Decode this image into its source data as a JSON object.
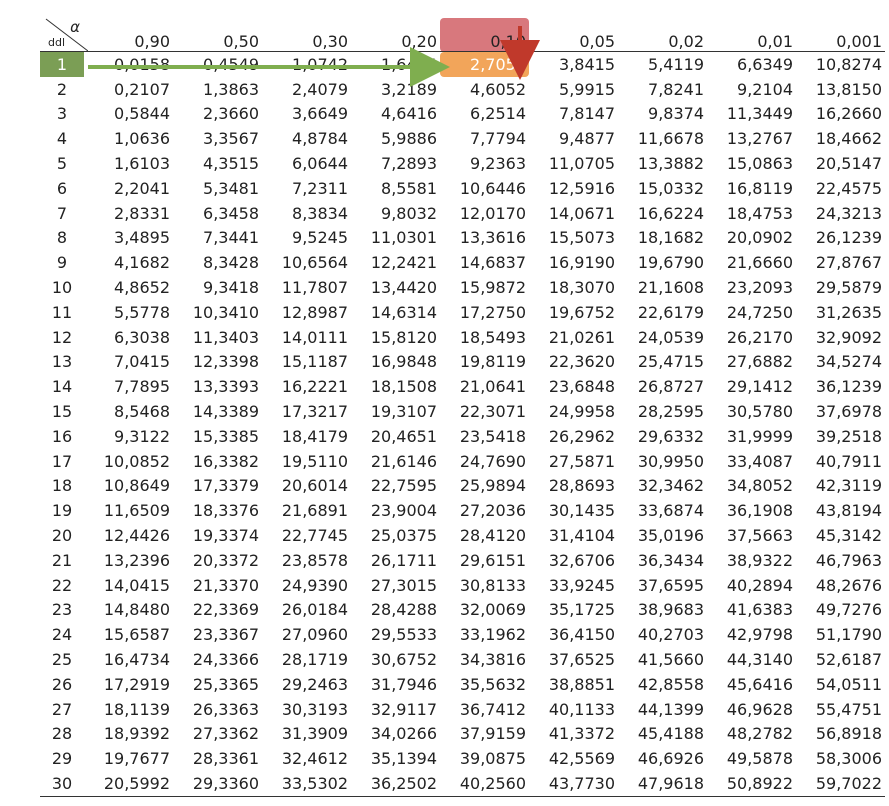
{
  "table": {
    "corner": {
      "alpha": "α",
      "ddl": "ddl"
    },
    "alphas": [
      "0,90",
      "0,50",
      "0,30",
      "0,20",
      "0,10",
      "0,05",
      "0,02",
      "0,01",
      "0,001"
    ],
    "rows": [
      {
        "ddl": "1",
        "v": [
          "0,0158",
          "0,4549",
          "1,0742",
          "1,6424",
          "2,7055",
          "3,8415",
          "5,4119",
          "6,6349",
          "10,8274"
        ]
      },
      {
        "ddl": "2",
        "v": [
          "0,2107",
          "1,3863",
          "2,4079",
          "3,2189",
          "4,6052",
          "5,9915",
          "7,8241",
          "9,2104",
          "13,8150"
        ]
      },
      {
        "ddl": "3",
        "v": [
          "0,5844",
          "2,3660",
          "3,6649",
          "4,6416",
          "6,2514",
          "7,8147",
          "9,8374",
          "11,3449",
          "16,2660"
        ]
      },
      {
        "ddl": "4",
        "v": [
          "1,0636",
          "3,3567",
          "4,8784",
          "5,9886",
          "7,7794",
          "9,4877",
          "11,6678",
          "13,2767",
          "18,4662"
        ]
      },
      {
        "ddl": "5",
        "v": [
          "1,6103",
          "4,3515",
          "6,0644",
          "7,2893",
          "9,2363",
          "11,0705",
          "13,3882",
          "15,0863",
          "20,5147"
        ]
      },
      {
        "ddl": "6",
        "v": [
          "2,2041",
          "5,3481",
          "7,2311",
          "8,5581",
          "10,6446",
          "12,5916",
          "15,0332",
          "16,8119",
          "22,4575"
        ]
      },
      {
        "ddl": "7",
        "v": [
          "2,8331",
          "6,3458",
          "8,3834",
          "9,8032",
          "12,0170",
          "14,0671",
          "16,6224",
          "18,4753",
          "24,3213"
        ]
      },
      {
        "ddl": "8",
        "v": [
          "3,4895",
          "7,3441",
          "9,5245",
          "11,0301",
          "13,3616",
          "15,5073",
          "18,1682",
          "20,0902",
          "26,1239"
        ]
      },
      {
        "ddl": "9",
        "v": [
          "4,1682",
          "8,3428",
          "10,6564",
          "12,2421",
          "14,6837",
          "16,9190",
          "19,6790",
          "21,6660",
          "27,8767"
        ]
      },
      {
        "ddl": "10",
        "v": [
          "4,8652",
          "9,3418",
          "11,7807",
          "13,4420",
          "15,9872",
          "18,3070",
          "21,1608",
          "23,2093",
          "29,5879"
        ]
      },
      {
        "ddl": "11",
        "v": [
          "5,5778",
          "10,3410",
          "12,8987",
          "14,6314",
          "17,2750",
          "19,6752",
          "22,6179",
          "24,7250",
          "31,2635"
        ]
      },
      {
        "ddl": "12",
        "v": [
          "6,3038",
          "11,3403",
          "14,0111",
          "15,8120",
          "18,5493",
          "21,0261",
          "24,0539",
          "26,2170",
          "32,9092"
        ]
      },
      {
        "ddl": "13",
        "v": [
          "7,0415",
          "12,3398",
          "15,1187",
          "16,9848",
          "19,8119",
          "22,3620",
          "25,4715",
          "27,6882",
          "34,5274"
        ]
      },
      {
        "ddl": "14",
        "v": [
          "7,7895",
          "13,3393",
          "16,2221",
          "18,1508",
          "21,0641",
          "23,6848",
          "26,8727",
          "29,1412",
          "36,1239"
        ]
      },
      {
        "ddl": "15",
        "v": [
          "8,5468",
          "14,3389",
          "17,3217",
          "19,3107",
          "22,3071",
          "24,9958",
          "28,2595",
          "30,5780",
          "37,6978"
        ]
      },
      {
        "ddl": "16",
        "v": [
          "9,3122",
          "15,3385",
          "18,4179",
          "20,4651",
          "23,5418",
          "26,2962",
          "29,6332",
          "31,9999",
          "39,2518"
        ]
      },
      {
        "ddl": "17",
        "v": [
          "10,0852",
          "16,3382",
          "19,5110",
          "21,6146",
          "24,7690",
          "27,5871",
          "30,9950",
          "33,4087",
          "40,7911"
        ]
      },
      {
        "ddl": "18",
        "v": [
          "10,8649",
          "17,3379",
          "20,6014",
          "22,7595",
          "25,9894",
          "28,8693",
          "32,3462",
          "34,8052",
          "42,3119"
        ]
      },
      {
        "ddl": "19",
        "v": [
          "11,6509",
          "18,3376",
          "21,6891",
          "23,9004",
          "27,2036",
          "30,1435",
          "33,6874",
          "36,1908",
          "43,8194"
        ]
      },
      {
        "ddl": "20",
        "v": [
          "12,4426",
          "19,3374",
          "22,7745",
          "25,0375",
          "28,4120",
          "31,4104",
          "35,0196",
          "37,5663",
          "45,3142"
        ]
      },
      {
        "ddl": "21",
        "v": [
          "13,2396",
          "20,3372",
          "23,8578",
          "26,1711",
          "29,6151",
          "32,6706",
          "36,3434",
          "38,9322",
          "46,7963"
        ]
      },
      {
        "ddl": "22",
        "v": [
          "14,0415",
          "21,3370",
          "24,9390",
          "27,3015",
          "30,8133",
          "33,9245",
          "37,6595",
          "40,2894",
          "48,2676"
        ]
      },
      {
        "ddl": "23",
        "v": [
          "14,8480",
          "22,3369",
          "26,0184",
          "28,4288",
          "32,0069",
          "35,1725",
          "38,9683",
          "41,6383",
          "49,7276"
        ]
      },
      {
        "ddl": "24",
        "v": [
          "15,6587",
          "23,3367",
          "27,0960",
          "29,5533",
          "33,1962",
          "36,4150",
          "40,2703",
          "42,9798",
          "51,1790"
        ]
      },
      {
        "ddl": "25",
        "v": [
          "16,4734",
          "24,3366",
          "28,1719",
          "30,6752",
          "34,3816",
          "37,6525",
          "41,5660",
          "44,3140",
          "52,6187"
        ]
      },
      {
        "ddl": "26",
        "v": [
          "17,2919",
          "25,3365",
          "29,2463",
          "31,7946",
          "35,5632",
          "38,8851",
          "42,8558",
          "45,6416",
          "54,0511"
        ]
      },
      {
        "ddl": "27",
        "v": [
          "18,1139",
          "26,3363",
          "30,3193",
          "32,9117",
          "36,7412",
          "40,1133",
          "44,1399",
          "46,9628",
          "55,4751"
        ]
      },
      {
        "ddl": "28",
        "v": [
          "18,9392",
          "27,3362",
          "31,3909",
          "34,0266",
          "37,9159",
          "41,3372",
          "45,4188",
          "48,2782",
          "56,8918"
        ]
      },
      {
        "ddl": "29",
        "v": [
          "19,7677",
          "28,3361",
          "32,4612",
          "35,1394",
          "39,0875",
          "42,5569",
          "46,6926",
          "49,5878",
          "58,3006"
        ]
      },
      {
        "ddl": "30",
        "v": [
          "20,5992",
          "29,3360",
          "33,5302",
          "36,2502",
          "40,2560",
          "43,7730",
          "47,9618",
          "50,8922",
          "59,7022"
        ]
      }
    ],
    "highlight": {
      "row_ddl": "1",
      "alpha": "0,10"
    },
    "colors": {
      "row_arrow": "#7fae4f",
      "row_band": "#7b9e55",
      "column_header": "#d8787d",
      "column_arrow": "#c0392b",
      "cell": "#f2a55a"
    }
  }
}
